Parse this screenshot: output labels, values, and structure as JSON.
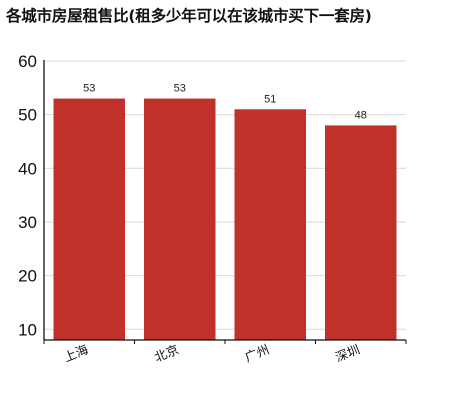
{
  "chart_data": {
    "type": "bar",
    "title": "各城市房屋租售比(租多少年可以在该城市买下一套房)",
    "categories": [
      "上海",
      "北京",
      "广州",
      "深圳"
    ],
    "values": [
      53,
      53,
      51,
      48
    ],
    "data_labels": [
      "53",
      "53",
      "51",
      "48"
    ],
    "xlabel": "",
    "ylabel": "",
    "ylim": [
      8,
      60
    ],
    "yticks": [
      10,
      20,
      30,
      40,
      50,
      60
    ],
    "grid": true,
    "legend": "none",
    "colors": {
      "bar": "#c1312c",
      "grid": "#d9d9d9",
      "axis": "#111111"
    }
  }
}
